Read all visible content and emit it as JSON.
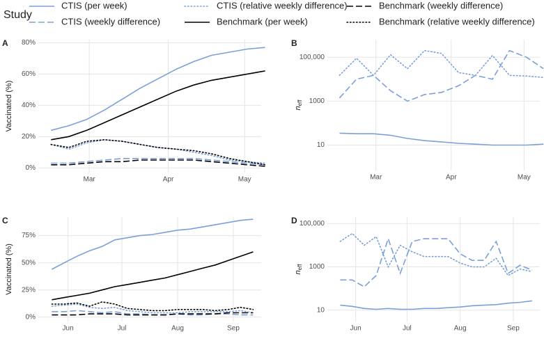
{
  "legend_title": "Study",
  "chart_data": [
    {
      "type": "line",
      "label": "A",
      "ylabel": "Vaccinated (%)",
      "x": [
        45,
        52,
        59,
        66,
        73,
        80,
        87,
        94,
        101,
        108,
        115,
        122,
        129
      ],
      "xlim": [
        40,
        127.5
      ],
      "xticks": [
        {
          "value": 60,
          "label": "Mar"
        },
        {
          "value": 91,
          "label": "Apr"
        },
        {
          "value": 121,
          "label": "May"
        }
      ],
      "ylim": [
        -3,
        82
      ],
      "yticks": [
        {
          "value": 0,
          "label": "0%"
        },
        {
          "value": 20,
          "label": "20%"
        },
        {
          "value": 40,
          "label": "40%"
        },
        {
          "value": 60,
          "label": "60%"
        },
        {
          "value": 80,
          "label": "80%"
        }
      ],
      "grid": true,
      "series": [
        {
          "name": "CTIS (per week)",
          "color": "#7b9fd8",
          "style": "solid",
          "values": [
            24,
            27,
            31,
            37,
            44,
            51,
            57,
            63,
            68,
            72,
            74,
            76,
            77
          ]
        },
        {
          "name": "CTIS (weekly difference)",
          "color": "#7b9fd8",
          "style": "dashed",
          "values": [
            3,
            3,
            4,
            5,
            6,
            6,
            6,
            6,
            6,
            5,
            4,
            3,
            2
          ]
        },
        {
          "name": "CTIS (relative weekly difference)",
          "color": "#7b9fd8",
          "style": "dotted",
          "values": [
            15,
            12,
            16,
            18,
            17,
            15,
            13,
            12,
            10,
            8,
            5,
            4,
            3
          ]
        },
        {
          "name": "Benchmark (per week)",
          "color": "#000000",
          "style": "solid",
          "values": [
            18,
            20,
            24,
            29,
            34,
            39,
            44,
            49,
            53,
            56,
            58,
            60,
            62
          ]
        },
        {
          "name": "Benchmark (weekly difference)",
          "color": "#000000",
          "style": "dashed",
          "values": [
            2,
            2,
            3,
            4,
            4,
            5,
            5,
            5,
            5,
            4,
            3,
            2,
            1
          ]
        },
        {
          "name": "Benchmark (relative weekly difference)",
          "color": "#000000",
          "style": "dotted",
          "values": [
            15,
            13,
            17,
            18,
            17,
            15,
            13,
            12,
            11,
            9,
            6,
            4,
            2
          ]
        }
      ]
    },
    {
      "type": "line",
      "label": "B",
      "ylabel": "n",
      "ylabel_sub": "eff",
      "ylog": true,
      "x": [
        45,
        52,
        59,
        66,
        73,
        80,
        87,
        94,
        101,
        108,
        115,
        122,
        129
      ],
      "xlim": [
        40,
        127.5
      ],
      "xticks": [
        {
          "value": 60,
          "label": "Mar"
        },
        {
          "value": 91,
          "label": "Apr"
        },
        {
          "value": 121,
          "label": "May"
        }
      ],
      "ylim": [
        0.7,
        630000
      ],
      "yticks": [
        10,
        1000,
        {
          "value": 100000,
          "label": "100,000"
        }
      ],
      "grid": true,
      "series": [
        {
          "color": "#7b9fd8",
          "style": "solid",
          "values": [
            35,
            33,
            33,
            28,
            20,
            16,
            14,
            12,
            11,
            10,
            10,
            10,
            11
          ]
        },
        {
          "color": "#7b9fd8",
          "style": "dashed",
          "values": [
            1400,
            10000,
            15000,
            3000,
            1000,
            2000,
            2500,
            5000,
            15000,
            10000,
            200000,
            100000,
            30000
          ]
        },
        {
          "color": "#7b9fd8",
          "style": "dotted",
          "values": [
            15000,
            90000,
            15000,
            130000,
            30000,
            200000,
            150000,
            20000,
            15000,
            120000,
            15000,
            14000,
            12000
          ]
        }
      ]
    },
    {
      "type": "line",
      "label": "C",
      "ylabel": "Vaccinated (%)",
      "x": [
        143,
        150,
        157,
        164,
        171,
        178,
        185,
        192,
        199,
        206,
        213,
        220,
        227,
        234,
        241,
        248,
        255
      ],
      "xlim": [
        135.5,
        259.5
      ],
      "xticks": [
        {
          "value": 152,
          "label": "Jun"
        },
        {
          "value": 182,
          "label": "Jul"
        },
        {
          "value": 213,
          "label": "Aug"
        },
        {
          "value": 244,
          "label": "Sep"
        }
      ],
      "ylim": [
        -4,
        92
      ],
      "yticks": [
        {
          "value": 0,
          "label": "0%"
        },
        {
          "value": 25,
          "label": "25%"
        },
        {
          "value": 50,
          "label": "50%"
        },
        {
          "value": 75,
          "label": "75%"
        }
      ],
      "grid": true,
      "series": [
        {
          "color": "#7b9fd8",
          "style": "solid",
          "values": [
            44,
            50,
            56,
            61,
            65,
            71,
            73,
            75,
            76,
            78,
            80,
            81,
            83,
            85,
            87,
            89,
            90
          ]
        },
        {
          "color": "#7b9fd8",
          "style": "dashed",
          "values": [
            5,
            5,
            6,
            5,
            4,
            5,
            3,
            3,
            2,
            2,
            3,
            2,
            2,
            3,
            3,
            2,
            2
          ]
        },
        {
          "color": "#7b9fd8",
          "style": "dotted",
          "values": [
            10,
            11,
            12,
            9,
            8,
            9,
            6,
            5,
            4,
            4,
            4,
            5,
            5,
            5,
            5,
            6,
            4
          ]
        },
        {
          "color": "#000000",
          "style": "solid",
          "values": [
            16,
            18,
            20,
            22,
            25,
            28,
            30,
            32,
            34,
            36,
            39,
            42,
            45,
            48,
            52,
            56,
            60
          ]
        },
        {
          "color": "#000000",
          "style": "dashed",
          "values": [
            2,
            2,
            2,
            3,
            3,
            3,
            2,
            2,
            2,
            2,
            3,
            3,
            3,
            3,
            4,
            4,
            4
          ]
        },
        {
          "color": "#000000",
          "style": "dotted",
          "values": [
            12,
            12,
            13,
            10,
            14,
            12,
            8,
            7,
            6,
            6,
            7,
            7,
            7,
            6,
            7,
            9,
            7
          ]
        }
      ]
    },
    {
      "type": "line",
      "label": "D",
      "ylabel": "n",
      "ylabel_sub": "eff",
      "ylog": true,
      "x": [
        143,
        150,
        157,
        164,
        171,
        178,
        185,
        192,
        199,
        206,
        213,
        220,
        227,
        234,
        241,
        248,
        255
      ],
      "xlim": [
        135.5,
        259.5
      ],
      "xticks": [
        {
          "value": 152,
          "label": "Jun"
        },
        {
          "value": 182,
          "label": "Jul"
        },
        {
          "value": 213,
          "label": "Aug"
        },
        {
          "value": 244,
          "label": "Sep"
        }
      ],
      "ylim": [
        3,
        200000
      ],
      "yticks": [
        10,
        1000,
        {
          "value": 100000,
          "label": "100,000"
        }
      ],
      "grid": true,
      "series": [
        {
          "color": "#7b9fd8",
          "style": "solid",
          "values": [
            17,
            15,
            12,
            11,
            12,
            11,
            11,
            12,
            12,
            13,
            14,
            16,
            17,
            18,
            21,
            23,
            27
          ]
        },
        {
          "color": "#7b9fd8",
          "style": "dashed",
          "values": [
            250,
            250,
            120,
            400,
            20000,
            500,
            15000,
            20000,
            20000,
            20000,
            4000,
            2000,
            2000,
            15000,
            500,
            1200,
            700
          ]
        },
        {
          "color": "#7b9fd8",
          "style": "dotted",
          "values": [
            15000,
            35000,
            10000,
            25000,
            1000,
            10000,
            5000,
            3000,
            3000,
            3000,
            1500,
            1000,
            1000,
            2500,
            400,
            800,
            600
          ]
        }
      ]
    }
  ]
}
